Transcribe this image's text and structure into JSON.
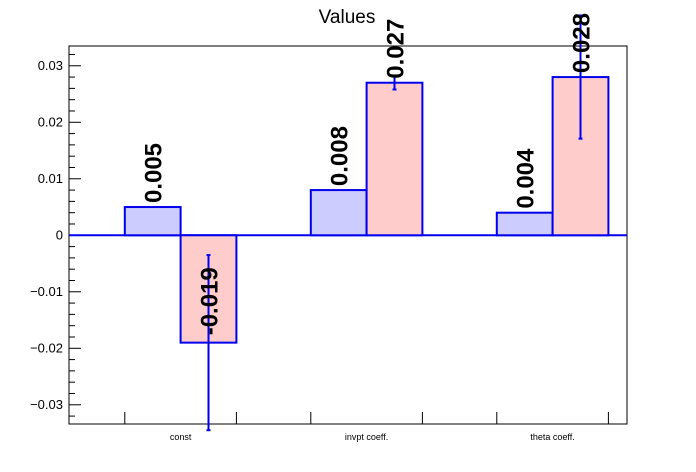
{
  "chart_data": {
    "type": "bar",
    "title": "Values",
    "xlabel": "",
    "ylabel": "",
    "categories": [
      "const",
      "invpt coeff.",
      "theta coeff."
    ],
    "series": [
      {
        "values": [
          0.005,
          0.008,
          0.004
        ],
        "labels": [
          "0.005",
          "0.008",
          "0.004"
        ],
        "errors": [
          null,
          null,
          null
        ],
        "color": "#ccccff"
      },
      {
        "values": [
          -0.019,
          0.027,
          0.028
        ],
        "labels": [
          "-0.019",
          "0.027",
          "0.028"
        ],
        "errors": [
          0.0155,
          0.0012,
          0.0109
        ],
        "color": "#ffcccc"
      }
    ],
    "ylim": [
      -0.0334,
      0.0335
    ],
    "yticks": [
      -0.03,
      -0.02,
      -0.01,
      0,
      0.01,
      0.02,
      0.03
    ],
    "ytick_labels": [
      "−0.03",
      "−0.02",
      "−0.01",
      "0",
      "0.01",
      "0.02",
      "0.03"
    ],
    "edge_color": "#0000ee",
    "grid": false,
    "legend": "none"
  }
}
